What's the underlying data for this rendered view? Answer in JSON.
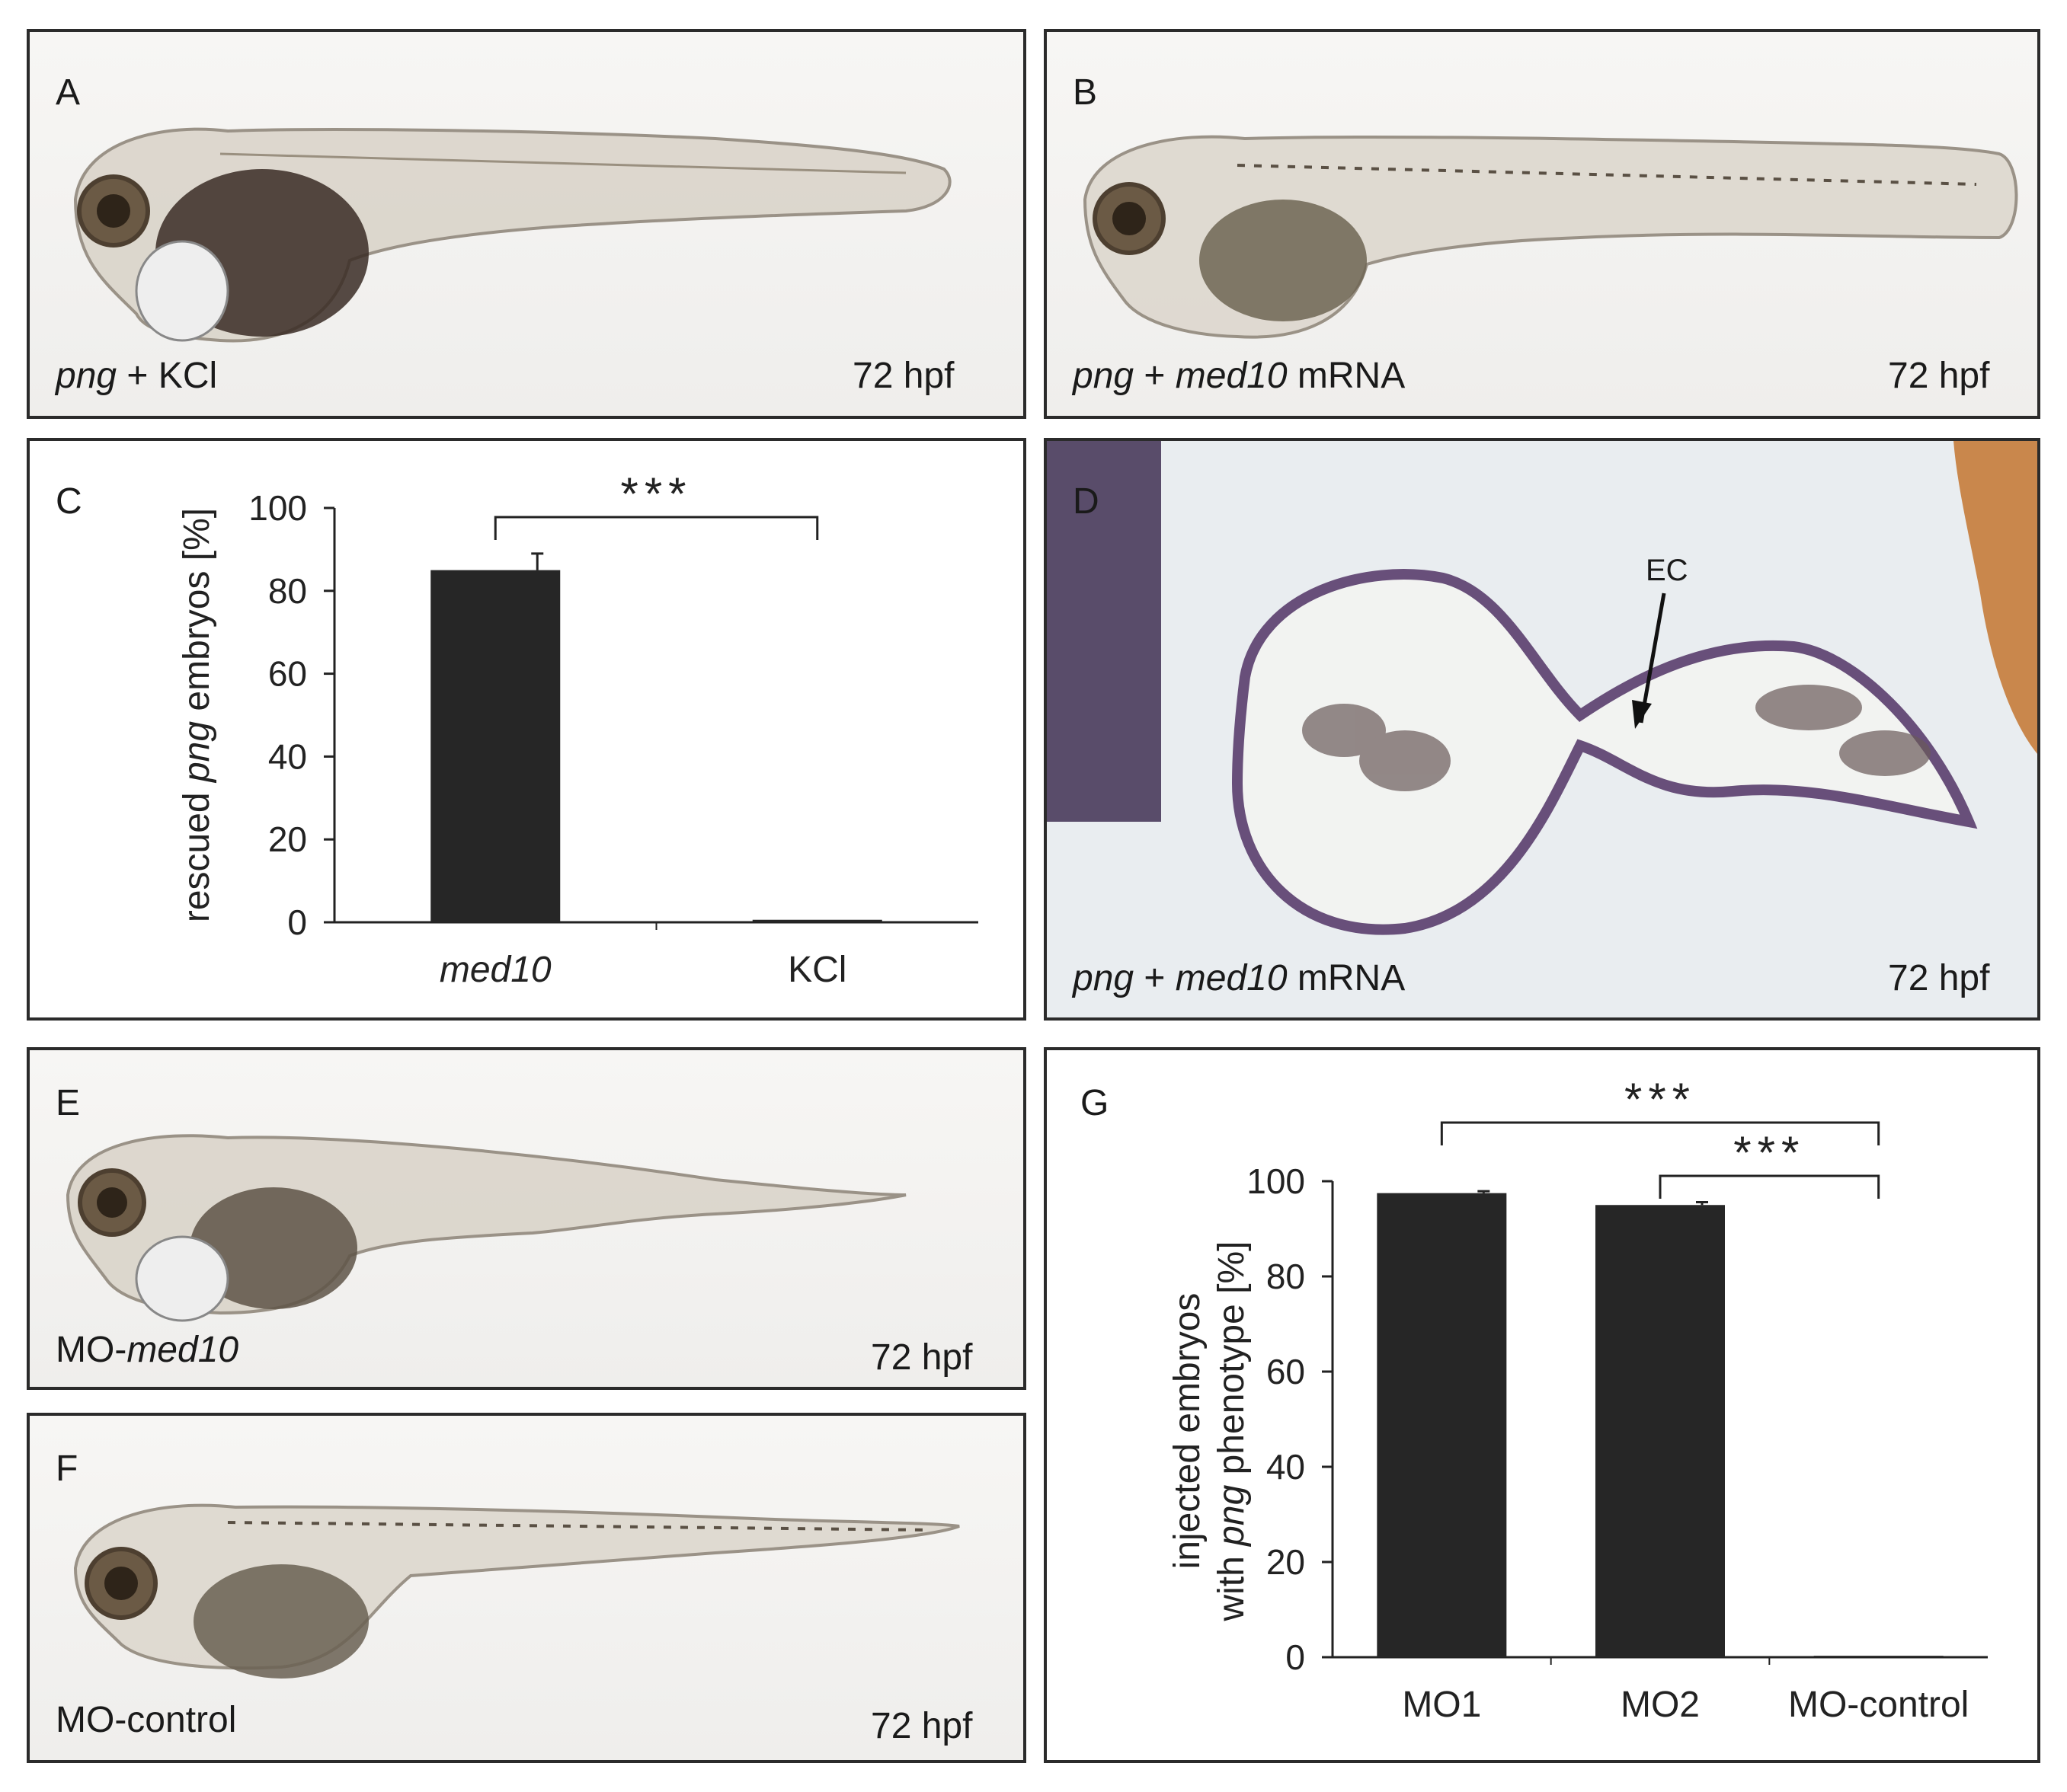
{
  "panels": {
    "A": {
      "letter": "A",
      "caption_italic": "png",
      "caption_rest": " + KCl",
      "stage": "72 hpf"
    },
    "B": {
      "letter": "B",
      "caption_italic": "png",
      "caption_mid": " + ",
      "caption_italic2": "med10",
      "caption_rest": " mRNA",
      "stage": "72 hpf"
    },
    "C": {
      "letter": "C"
    },
    "D": {
      "letter": "D",
      "caption_italic": "png",
      "caption_mid": " + ",
      "caption_italic2": "med10",
      "caption_rest": " mRNA",
      "stage": "72 hpf",
      "arrow_label": "EC"
    },
    "E": {
      "letter": "E",
      "caption_pre": "MO-",
      "caption_italic": "med10",
      "stage": "72 hpf"
    },
    "F": {
      "letter": "F",
      "caption": "MO-control",
      "stage": "72 hpf"
    },
    "G": {
      "letter": "G"
    }
  },
  "chart_data": [
    {
      "panel": "C",
      "type": "bar",
      "categories": [
        "med10",
        "KCl"
      ],
      "values": [
        85,
        0.6
      ],
      "errors": [
        4,
        0
      ],
      "ylabel_pre": "rescued ",
      "ylabel_italic": "png",
      "ylabel_post": " embryos [%]",
      "ylim": [
        0,
        100
      ],
      "yticks": [
        0,
        20,
        40,
        60,
        80,
        100
      ],
      "significance": [
        {
          "from": "med10",
          "to": "KCl",
          "label": "***"
        }
      ],
      "bar_color": "#262626"
    },
    {
      "panel": "G",
      "type": "bar",
      "categories": [
        "MO1",
        "MO2",
        "MO-control"
      ],
      "values": [
        97.5,
        95,
        0.3
      ],
      "errors": [
        0.4,
        0.6,
        0
      ],
      "ylabel_line1": "injected embryos",
      "ylabel_line2_pre": "with ",
      "ylabel_line2_italic": "png",
      "ylabel_line2_post": " phenotype [%]",
      "ylim": [
        0,
        100
      ],
      "yticks": [
        0,
        20,
        40,
        60,
        80,
        100
      ],
      "significance": [
        {
          "from": "MO1",
          "to": "MO-control",
          "label": "***"
        },
        {
          "from": "MO2",
          "to": "MO-control",
          "label": "***"
        }
      ],
      "bar_color": "#262626"
    }
  ]
}
